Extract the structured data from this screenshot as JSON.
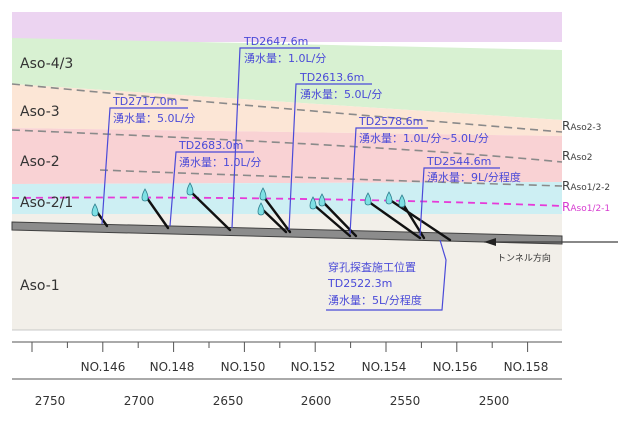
{
  "layers": [
    {
      "label": "Aso-4/3",
      "color": "#d8f1d2"
    },
    {
      "label": "Aso-3",
      "color": "#fce6d6"
    },
    {
      "label": "Aso-2",
      "color": "#f9d2d4"
    },
    {
      "label": "Aso-2/1",
      "color": "#cdeff3"
    },
    {
      "label": "Aso-1",
      "color": "#f2efe9"
    }
  ],
  "top_band_color": "#ecd4f1",
  "right_labels": [
    {
      "main": "R",
      "sub": "Aso2-3",
      "color": "#404040"
    },
    {
      "main": "R",
      "sub": "Aso2",
      "color": "#404040"
    },
    {
      "main": "R",
      "sub": "Aso1/2-2",
      "color": "#404040"
    },
    {
      "main": "R",
      "sub": "Aso1/2-1",
      "color": "#d63bd0"
    }
  ],
  "annotations": [
    {
      "td": "TD2647.6m",
      "flow": "湧水量：1.0L/分"
    },
    {
      "td": "TD2613.6m",
      "flow": "湧水量：5.0L/分"
    },
    {
      "td": "TD2717.0m",
      "flow": "湧水量：5.0L/分"
    },
    {
      "td": "TD2683.0m",
      "flow": "湧水量：1.0L/分"
    },
    {
      "td": "TD2578.6m",
      "flow": "湧水量：1.0L/分~5.0L/分"
    },
    {
      "td": "TD2544.6m",
      "flow": "湧水量：9L/分程度"
    }
  ],
  "survey": {
    "title": "穿孔探査施工位置",
    "td": "TD2522.3m",
    "flow": "湧水量：5L/分程度"
  },
  "tunnel_direction": "トンネル方向",
  "stations": [
    "NO.146",
    "NO.148",
    "NO.150",
    "NO.152",
    "NO.154",
    "NO.156",
    "NO.158"
  ],
  "distances": [
    "2750",
    "2700",
    "2650",
    "2600",
    "2550",
    "2500"
  ],
  "colors": {
    "annotation": "#4a4ad8",
    "boundary": "#8a8a8a",
    "pink_boundary": "#e63ad8",
    "drop": "#7ee0e4"
  }
}
